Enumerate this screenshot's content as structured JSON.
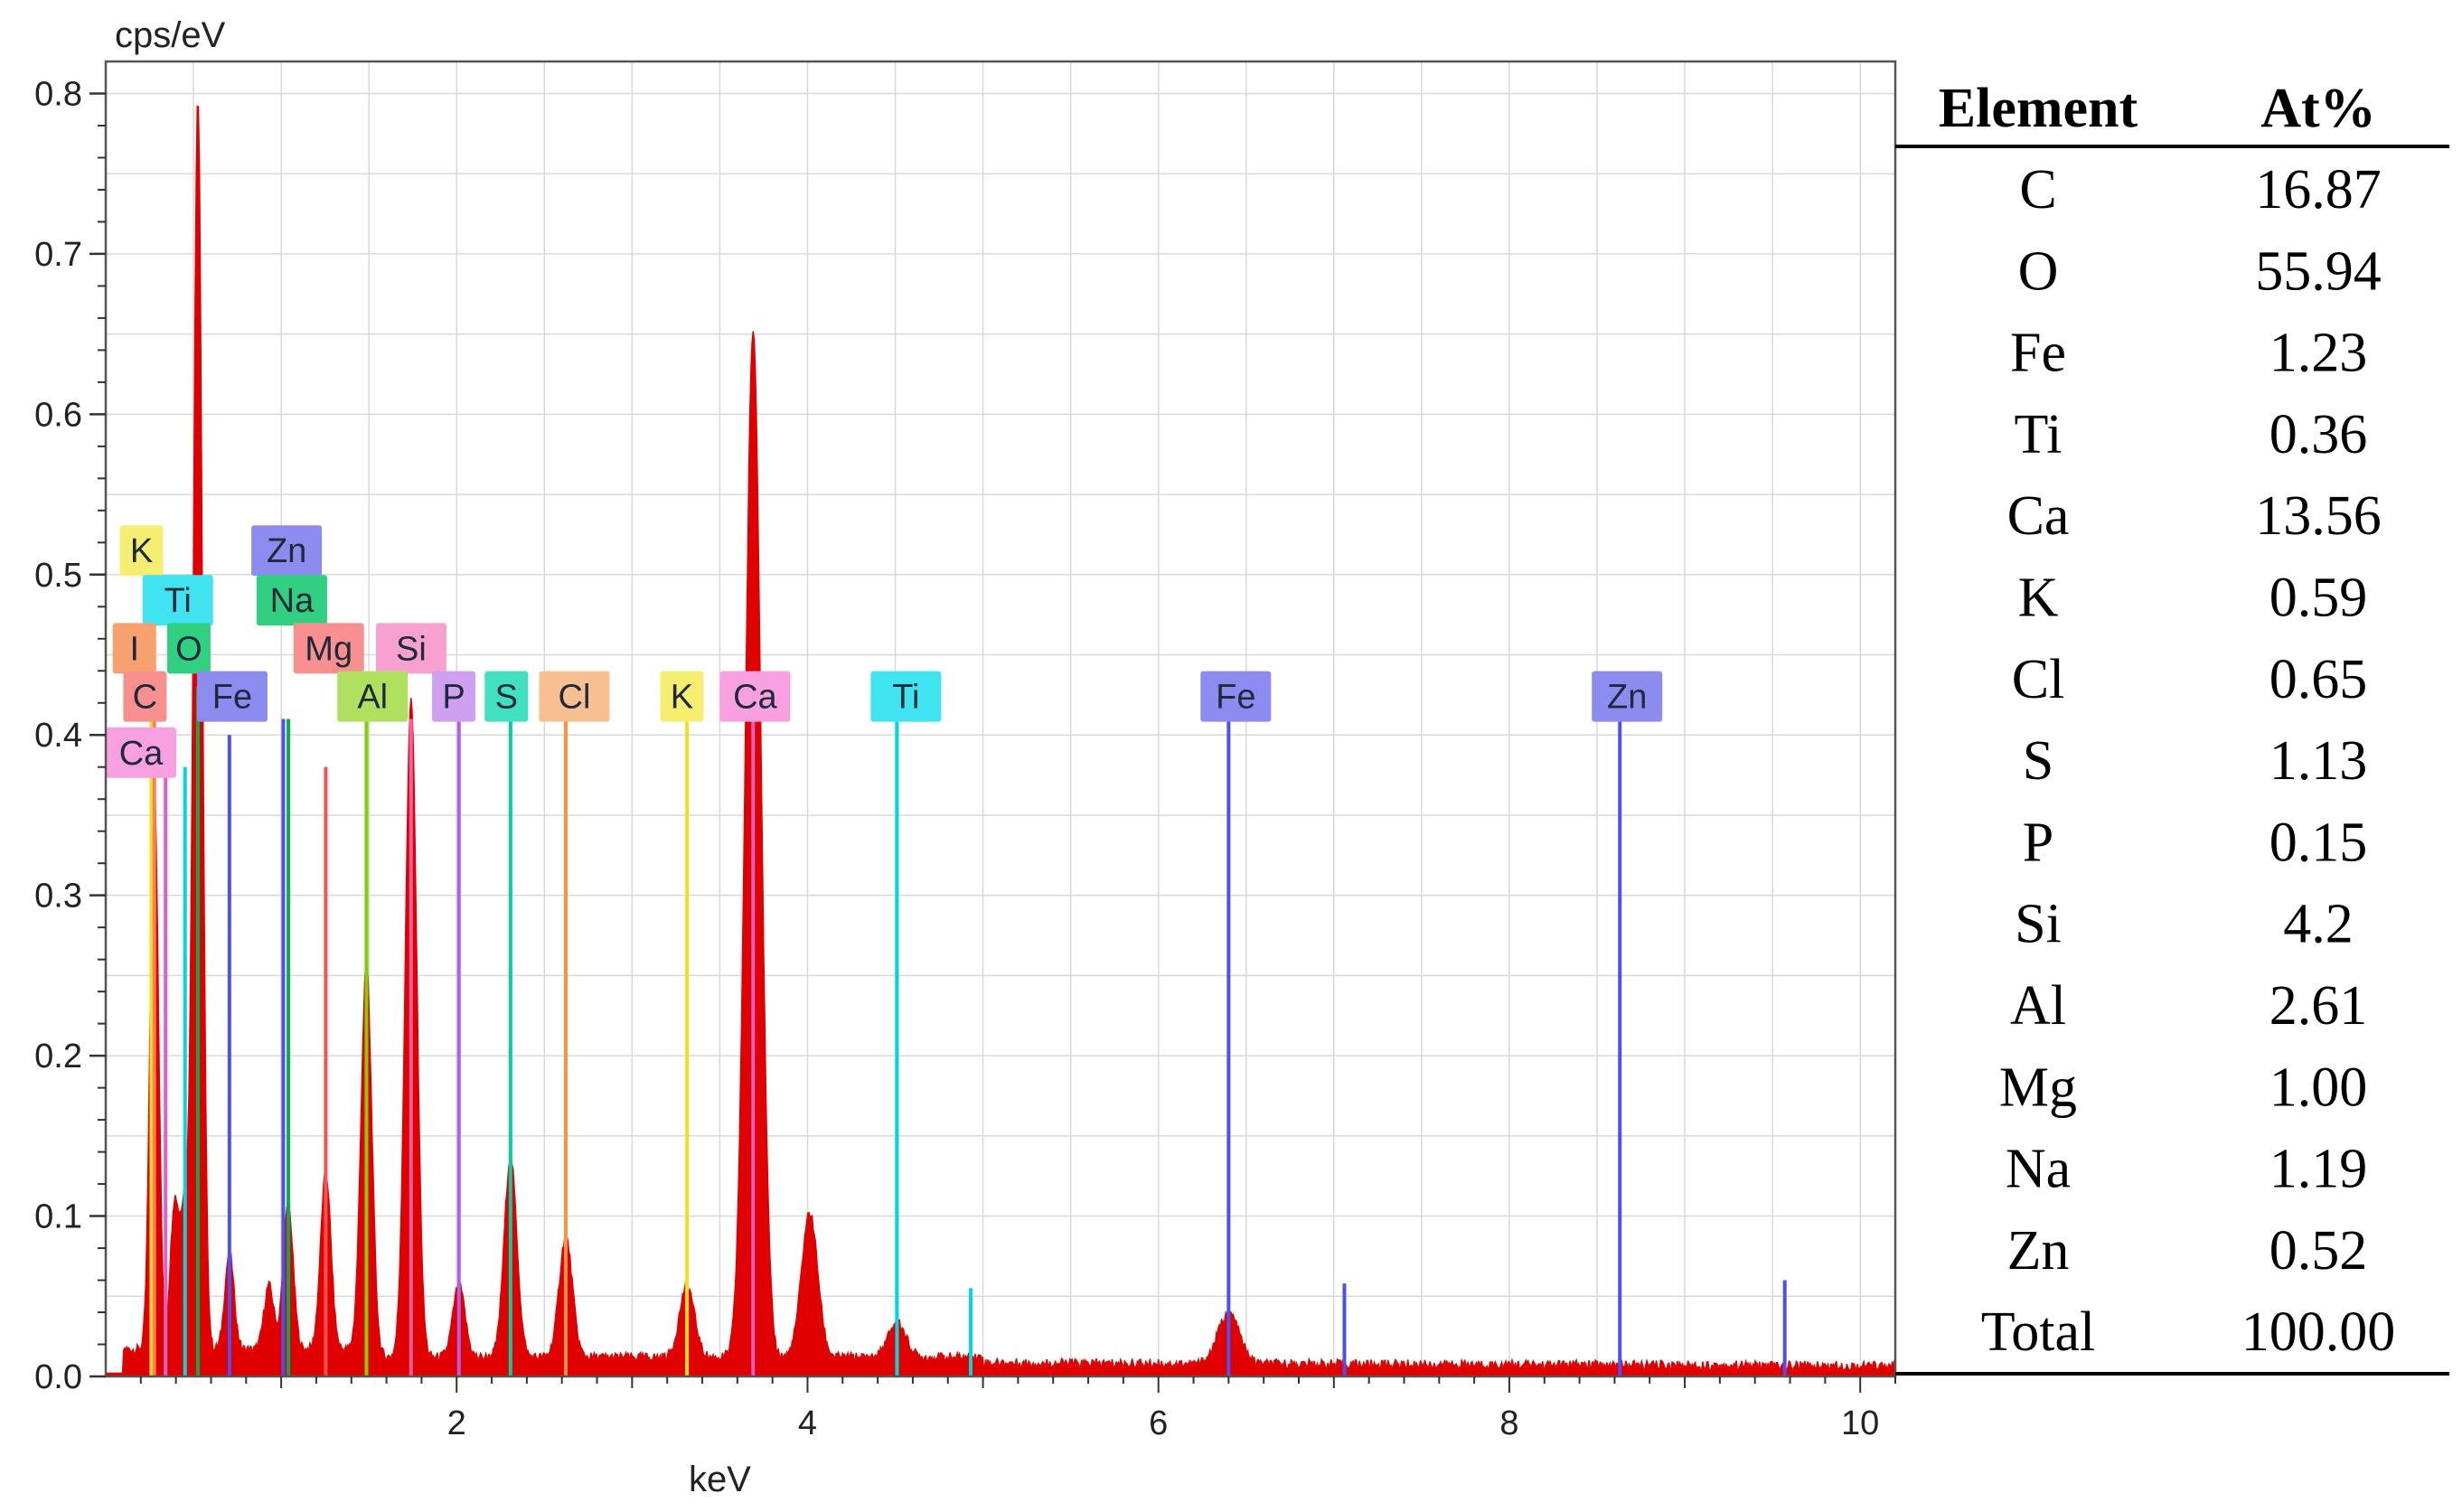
{
  "chart_data": {
    "type": "area",
    "title": "",
    "ylabel": "cps/eV",
    "xlabel": "keV",
    "xlim": [
      0,
      10.2
    ],
    "ylim": [
      0,
      0.82
    ],
    "xticks": [
      2,
      4,
      6,
      8,
      10
    ],
    "yticks": [
      0.0,
      0.1,
      0.2,
      0.3,
      0.4,
      0.5,
      0.6,
      0.7,
      0.8
    ],
    "ytick_labels": [
      "0.0",
      "0.1",
      "0.2",
      "0.3",
      "0.4",
      "0.5",
      "0.6",
      "0.7",
      "0.8"
    ],
    "grid": true,
    "spectrum_color": "#e00000",
    "background_level": 0.012,
    "peaks": [
      {
        "x": 0.277,
        "y": 0.35
      },
      {
        "x": 0.392,
        "y": 0.09
      },
      {
        "x": 0.452,
        "y": 0.09
      },
      {
        "x": 0.525,
        "y": 0.78
      },
      {
        "x": 0.705,
        "y": 0.06
      },
      {
        "x": 0.93,
        "y": 0.04
      },
      {
        "x": 1.04,
        "y": 0.09
      },
      {
        "x": 1.254,
        "y": 0.11
      },
      {
        "x": 1.486,
        "y": 0.24
      },
      {
        "x": 1.74,
        "y": 0.41
      },
      {
        "x": 2.013,
        "y": 0.045
      },
      {
        "x": 2.307,
        "y": 0.125
      },
      {
        "x": 2.622,
        "y": 0.075
      },
      {
        "x": 3.313,
        "y": 0.045
      },
      {
        "x": 3.69,
        "y": 0.64
      },
      {
        "x": 4.012,
        "y": 0.09
      },
      {
        "x": 4.51,
        "y": 0.022
      },
      {
        "x": 6.4,
        "y": 0.032
      }
    ],
    "marker_lines": [
      {
        "element": "K",
        "x": 0.26,
        "color": "#f2e020",
        "h": 0.45
      },
      {
        "element": "C",
        "x": 0.277,
        "color": "#ff7f50",
        "h": 0.42
      },
      {
        "element": "Ca",
        "x": 0.341,
        "color": "#e060c8",
        "h": 0.39
      },
      {
        "element": "Ti",
        "x": 0.452,
        "color": "#00d8e0",
        "h": 0.38
      },
      {
        "element": "O",
        "x": 0.525,
        "color": "#00b050",
        "h": 0.43
      },
      {
        "element": "Fe",
        "x": 0.705,
        "color": "#5050f0",
        "h": 0.4
      },
      {
        "element": "Zn",
        "x": 1.012,
        "color": "#5050f0",
        "h": 0.41
      },
      {
        "element": "Na",
        "x": 1.041,
        "color": "#00b050",
        "h": 0.41
      },
      {
        "element": "Mg",
        "x": 1.254,
        "color": "#ff5050",
        "h": 0.38
      },
      {
        "element": "Al",
        "x": 1.486,
        "color": "#80d000",
        "h": 0.41
      },
      {
        "element": "Si",
        "x": 1.74,
        "color": "#ff60a0",
        "h": 0.41
      },
      {
        "element": "P",
        "x": 2.013,
        "color": "#b060e0",
        "h": 0.41
      },
      {
        "element": "S",
        "x": 2.307,
        "color": "#00d0a0",
        "h": 0.41
      },
      {
        "element": "Cl",
        "x": 2.622,
        "color": "#ff9040",
        "h": 0.41
      },
      {
        "element": "K",
        "x": 3.313,
        "color": "#f2e020",
        "h": 0.41
      },
      {
        "element": "Ca",
        "x": 3.69,
        "color": "#e060c8",
        "h": 0.41
      },
      {
        "element": "Ti",
        "x": 4.51,
        "color": "#00d8e0",
        "h": 0.41
      },
      {
        "element": "Fe",
        "x": 6.4,
        "color": "#5050f0",
        "h": 0.41
      },
      {
        "element": "Zn",
        "x": 8.63,
        "color": "#5050f0",
        "h": 0.41
      },
      {
        "element": "Ti",
        "x": 4.93,
        "color": "#00d8e0",
        "h": 0.055
      },
      {
        "element": "Fe",
        "x": 7.06,
        "color": "#5050f0",
        "h": 0.058
      },
      {
        "element": "Zn",
        "x": 9.57,
        "color": "#5050f0",
        "h": 0.06
      }
    ],
    "element_tags": [
      {
        "label": "K",
        "x": 0.08,
        "y": 0.515,
        "color": "#f5ee70"
      },
      {
        "label": "Zn",
        "x": 0.83,
        "y": 0.515,
        "color": "#8c8cf0"
      },
      {
        "label": "Ti",
        "x": 0.21,
        "y": 0.484,
        "color": "#40e4f0"
      },
      {
        "label": "Na",
        "x": 0.86,
        "y": 0.484,
        "color": "#30d080"
      },
      {
        "label": "I",
        "x": 0.04,
        "y": 0.454,
        "color": "#f8a070"
      },
      {
        "label": "O",
        "x": 0.35,
        "y": 0.454,
        "color": "#30d080"
      },
      {
        "label": "Mg",
        "x": 1.07,
        "y": 0.454,
        "color": "#f89090"
      },
      {
        "label": "Si",
        "x": 1.54,
        "y": 0.454,
        "color": "#f8a0d0"
      },
      {
        "label": "C",
        "x": 0.1,
        "y": 0.424,
        "color": "#f89090"
      },
      {
        "label": "Fe",
        "x": 0.52,
        "y": 0.424,
        "color": "#8c8cf0"
      },
      {
        "label": "Al",
        "x": 1.32,
        "y": 0.424,
        "color": "#b0e060"
      },
      {
        "label": "P",
        "x": 1.86,
        "y": 0.424,
        "color": "#d0a0f0"
      },
      {
        "label": "S",
        "x": 2.16,
        "y": 0.424,
        "color": "#40e0c0"
      },
      {
        "label": "Cl",
        "x": 2.47,
        "y": 0.424,
        "color": "#f8c090"
      },
      {
        "label": "K",
        "x": 3.16,
        "y": 0.424,
        "color": "#f5ee70"
      },
      {
        "label": "Ca",
        "x": 3.5,
        "y": 0.424,
        "color": "#f8a0e0"
      },
      {
        "label": "Ti",
        "x": 4.36,
        "y": 0.424,
        "color": "#40e4f0"
      },
      {
        "label": "Fe",
        "x": 6.24,
        "y": 0.424,
        "color": "#8c8cf0"
      },
      {
        "label": "Zn",
        "x": 8.47,
        "y": 0.424,
        "color": "#8c8cf0"
      },
      {
        "label": "Ca",
        "x": 0.0,
        "y": 0.389,
        "color": "#f8a0e0"
      }
    ]
  },
  "table": {
    "headers": [
      "Element",
      "At%"
    ],
    "rows": [
      [
        "C",
        "16.87"
      ],
      [
        "O",
        "55.94"
      ],
      [
        "Fe",
        "1.23"
      ],
      [
        "Ti",
        "0.36"
      ],
      [
        "Ca",
        "13.56"
      ],
      [
        "K",
        "0.59"
      ],
      [
        "Cl",
        "0.65"
      ],
      [
        "S",
        "1.13"
      ],
      [
        "P",
        "0.15"
      ],
      [
        "Si",
        "4.2"
      ],
      [
        "Al",
        "2.61"
      ],
      [
        "Mg",
        "1.00"
      ],
      [
        "Na",
        "1.19"
      ],
      [
        "Zn",
        "0.52"
      ],
      [
        "Total",
        "100.00"
      ]
    ]
  }
}
